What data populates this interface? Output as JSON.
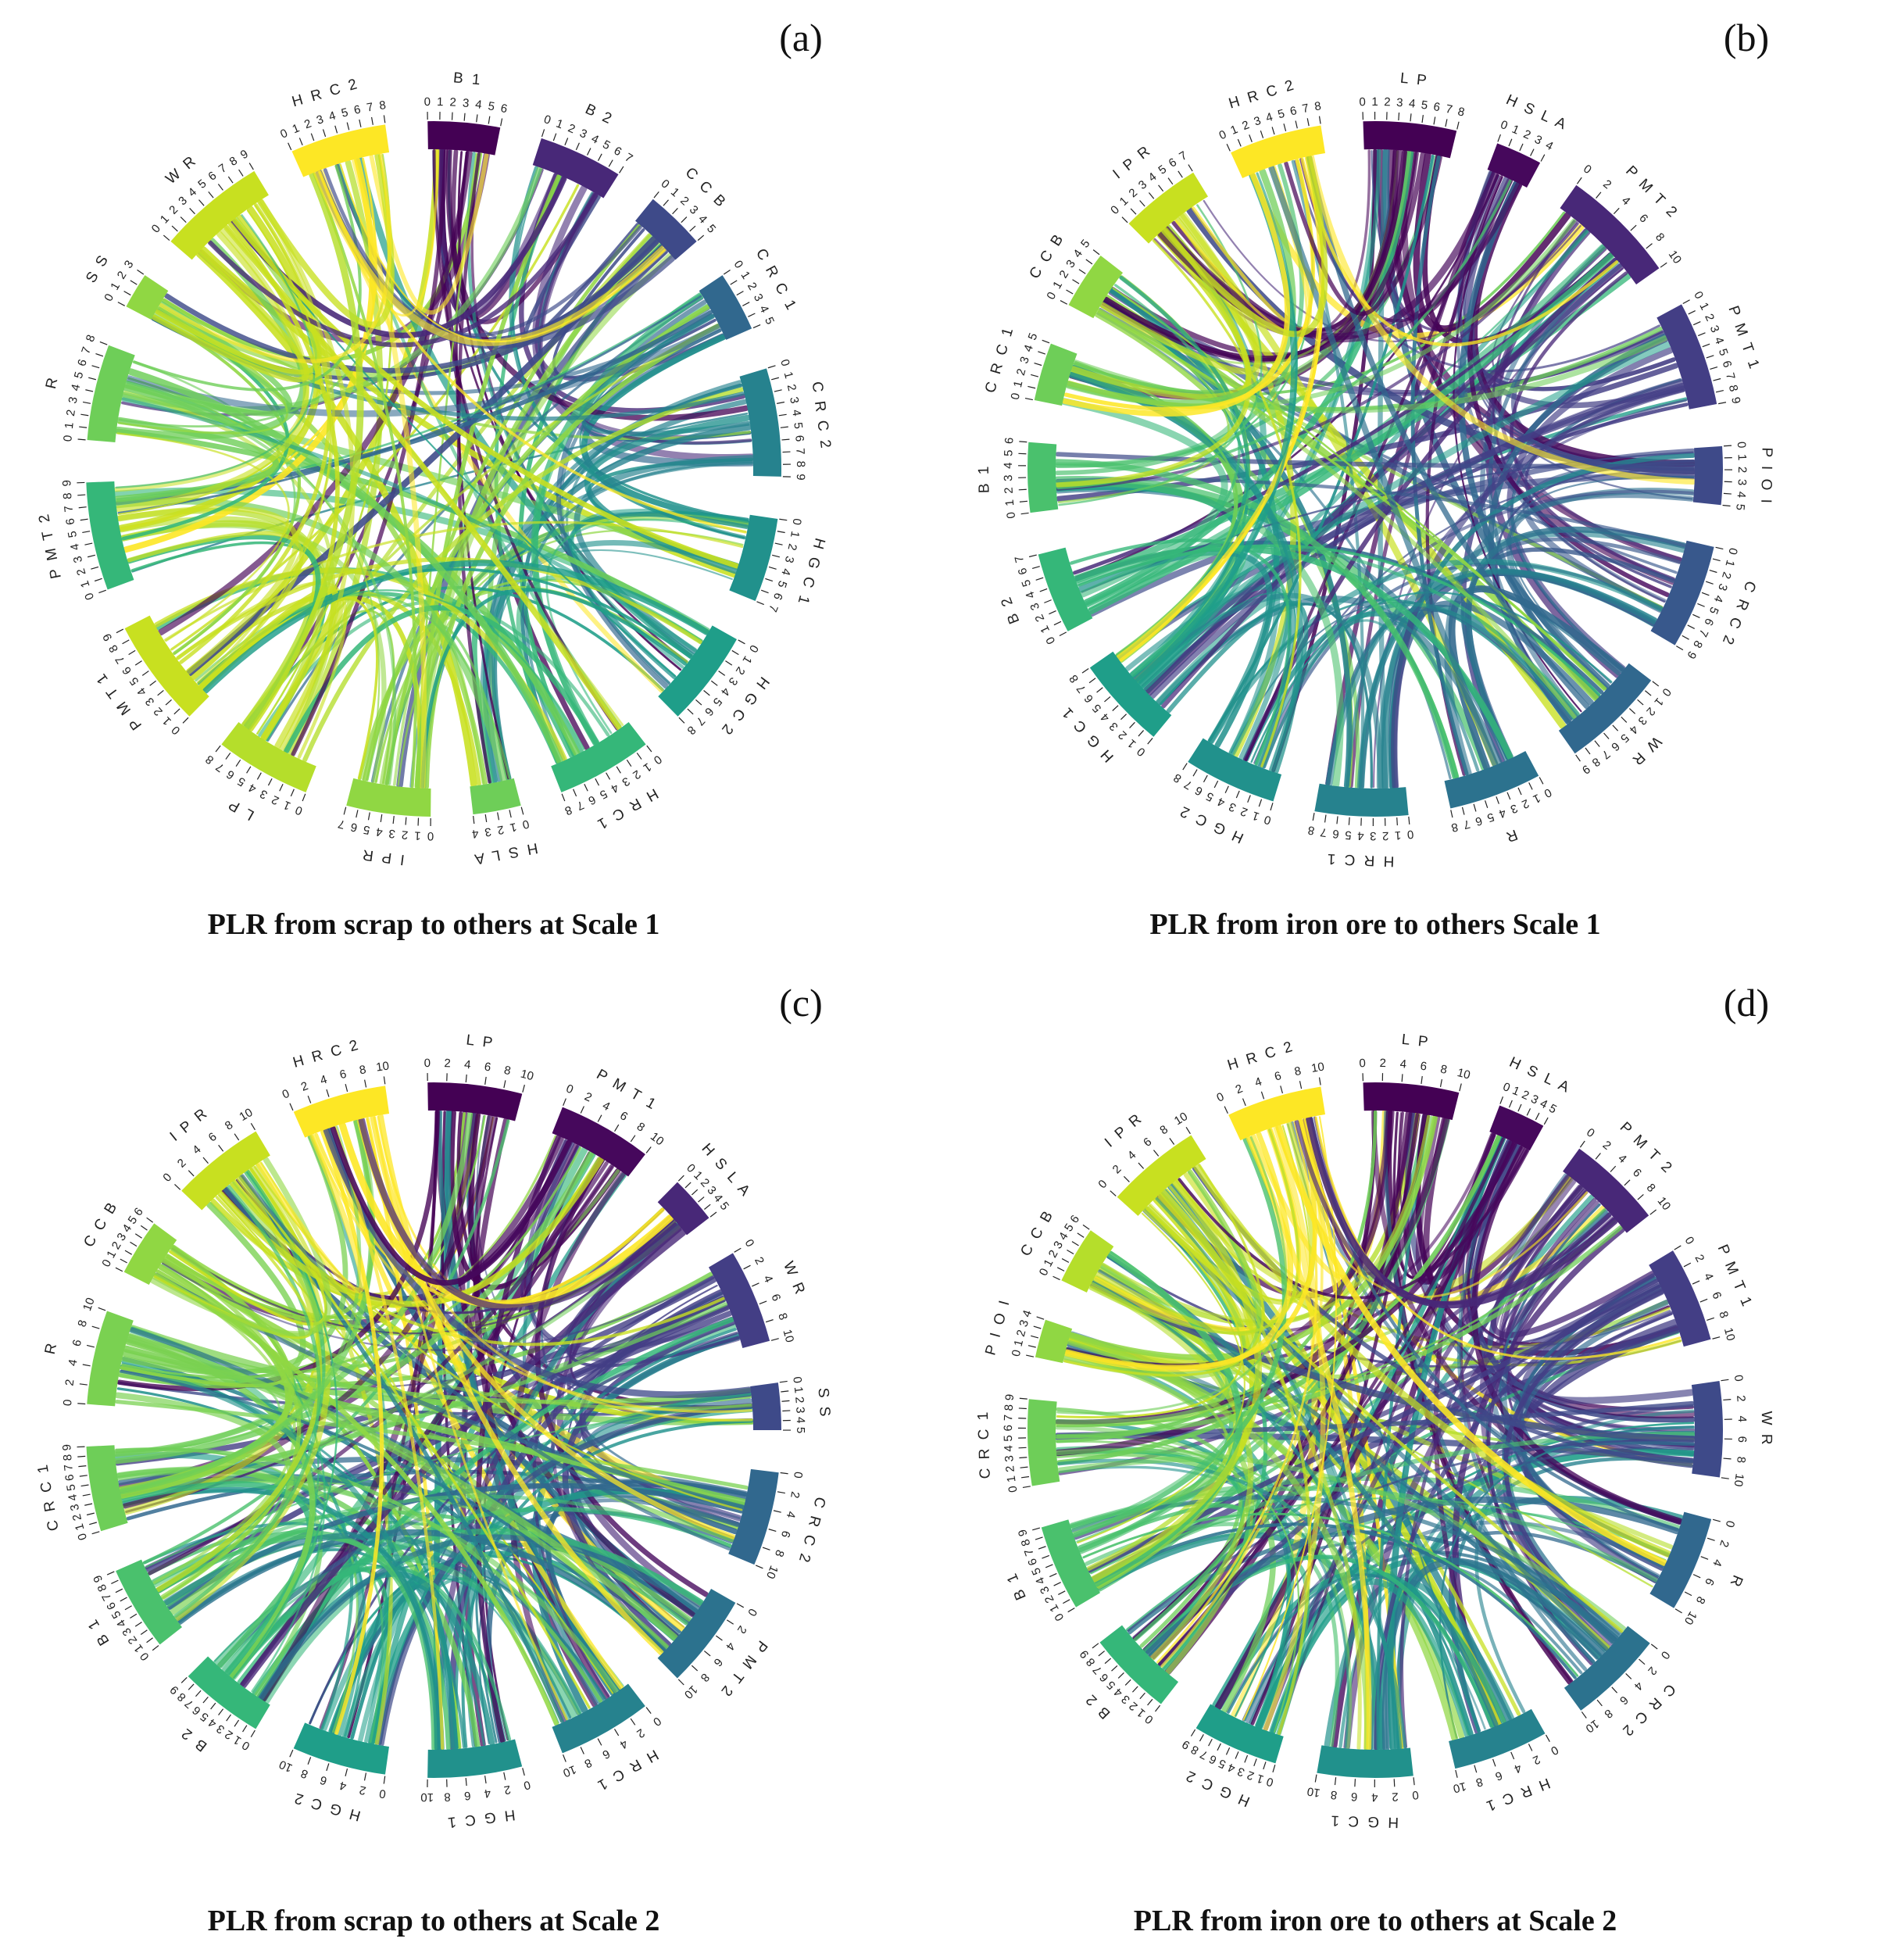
{
  "chart_data": [
    {
      "type": "chord",
      "panel": "(a)",
      "title": "PLR from scrap to others at Scale 1",
      "segments": [
        {
          "name": "B 1",
          "max": 6,
          "color": "#440154"
        },
        {
          "name": "B 2",
          "max": 7,
          "color": "#482878"
        },
        {
          "name": "C C B",
          "max": 5,
          "color": "#3e4a89"
        },
        {
          "name": "C R C 1",
          "max": 5,
          "color": "#31688e"
        },
        {
          "name": "C R C 2",
          "max": 9,
          "color": "#26828e"
        },
        {
          "name": "H G C 1",
          "max": 7,
          "color": "#21918c"
        },
        {
          "name": "H G C 2",
          "max": 8,
          "color": "#1f9e89"
        },
        {
          "name": "H R C 1",
          "max": 8,
          "color": "#35b779"
        },
        {
          "name": "H S L A",
          "max": 4,
          "color": "#6ece58"
        },
        {
          "name": "I P R",
          "max": 7,
          "color": "#90d743"
        },
        {
          "name": "L P",
          "max": 8,
          "color": "#b5de2b"
        },
        {
          "name": "P M T 1",
          "max": 9,
          "color": "#c8e020"
        },
        {
          "name": "P M T 2",
          "max": 9,
          "color": "#35b779"
        },
        {
          "name": "R",
          "max": 8,
          "color": "#6ece58"
        },
        {
          "name": "S S",
          "max": 3,
          "color": "#90d743"
        },
        {
          "name": "W R",
          "max": 9,
          "color": "#c8e020"
        },
        {
          "name": "H R C 2",
          "max": 8,
          "color": "#fde725"
        }
      ]
    },
    {
      "type": "chord",
      "panel": "(b)",
      "title": "PLR from iron ore to others Scale 1",
      "segments": [
        {
          "name": "L P",
          "max": 8,
          "color": "#440154"
        },
        {
          "name": "H S L A",
          "max": 4,
          "color": "#46085c"
        },
        {
          "name": "P M T 2",
          "max": 10,
          "color": "#482878"
        },
        {
          "name": "P M T 1",
          "max": 9,
          "color": "#433e85"
        },
        {
          "name": "P I O I",
          "max": 5,
          "color": "#3e4a89"
        },
        {
          "name": "C R C 2",
          "max": 9,
          "color": "#38588c"
        },
        {
          "name": "W R",
          "max": 9,
          "color": "#31688e"
        },
        {
          "name": "R",
          "max": 8,
          "color": "#2c728e"
        },
        {
          "name": "H R C 1",
          "max": 8,
          "color": "#26828e"
        },
        {
          "name": "H G C 2",
          "max": 8,
          "color": "#21918c"
        },
        {
          "name": "H G C 1",
          "max": 8,
          "color": "#1f9e89"
        },
        {
          "name": "B 2",
          "max": 7,
          "color": "#35b779"
        },
        {
          "name": "B 1",
          "max": 6,
          "color": "#4ac16d"
        },
        {
          "name": "C R C 1",
          "max": 5,
          "color": "#6ece58"
        },
        {
          "name": "C C B",
          "max": 5,
          "color": "#90d743"
        },
        {
          "name": "I P R",
          "max": 7,
          "color": "#c8e020"
        },
        {
          "name": "H R C 2",
          "max": 8,
          "color": "#fde725"
        }
      ]
    },
    {
      "type": "chord",
      "panel": "(c)",
      "title": "PLR from scrap to others at Scale 2",
      "segments": [
        {
          "name": "L P",
          "max": 10,
          "color": "#440154"
        },
        {
          "name": "P M T 1",
          "max": 10,
          "color": "#46085c"
        },
        {
          "name": "H S L A",
          "max": 5,
          "color": "#482878"
        },
        {
          "name": "W R",
          "max": 10,
          "color": "#433e85"
        },
        {
          "name": "S S",
          "max": 5,
          "color": "#3e4a89"
        },
        {
          "name": "C R C 2",
          "max": 10,
          "color": "#31688e"
        },
        {
          "name": "P M T 2",
          "max": 10,
          "color": "#2c728e"
        },
        {
          "name": "H R C 1",
          "max": 10,
          "color": "#26828e"
        },
        {
          "name": "H G C 1",
          "max": 10,
          "color": "#21918c"
        },
        {
          "name": "H G C 2",
          "max": 10,
          "color": "#1f9e89"
        },
        {
          "name": "B 2",
          "max": 9,
          "color": "#35b779"
        },
        {
          "name": "B 1",
          "max": 9,
          "color": "#4ac16d"
        },
        {
          "name": "C R C 1",
          "max": 9,
          "color": "#6ece58"
        },
        {
          "name": "R",
          "max": 10,
          "color": "#7ad151"
        },
        {
          "name": "C C B",
          "max": 6,
          "color": "#90d743"
        },
        {
          "name": "I P R",
          "max": 10,
          "color": "#c8e020"
        },
        {
          "name": "H R C 2",
          "max": 10,
          "color": "#fde725"
        }
      ]
    },
    {
      "type": "chord",
      "panel": "(d)",
      "title": "PLR from iron ore to others at Scale 2",
      "segments": [
        {
          "name": "L P",
          "max": 10,
          "color": "#440154"
        },
        {
          "name": "H S L A",
          "max": 5,
          "color": "#46085c"
        },
        {
          "name": "P M T 2",
          "max": 10,
          "color": "#482878"
        },
        {
          "name": "P M T 1",
          "max": 10,
          "color": "#433e85"
        },
        {
          "name": "W R",
          "max": 10,
          "color": "#3e4a89"
        },
        {
          "name": "R",
          "max": 10,
          "color": "#31688e"
        },
        {
          "name": "C R C 2",
          "max": 10,
          "color": "#2c728e"
        },
        {
          "name": "H R C 1",
          "max": 10,
          "color": "#26828e"
        },
        {
          "name": "H G C 1",
          "max": 10,
          "color": "#21918c"
        },
        {
          "name": "H G C 2",
          "max": 9,
          "color": "#1f9e89"
        },
        {
          "name": "B 2",
          "max": 9,
          "color": "#35b779"
        },
        {
          "name": "B 1",
          "max": 9,
          "color": "#4ac16d"
        },
        {
          "name": "C R C 1",
          "max": 9,
          "color": "#6ece58"
        },
        {
          "name": "P I O I",
          "max": 4,
          "color": "#90d743"
        },
        {
          "name": "C C B",
          "max": 6,
          "color": "#b5de2b"
        },
        {
          "name": "I P R",
          "max": 10,
          "color": "#c8e020"
        },
        {
          "name": "H R C 2",
          "max": 10,
          "color": "#fde725"
        }
      ]
    }
  ]
}
